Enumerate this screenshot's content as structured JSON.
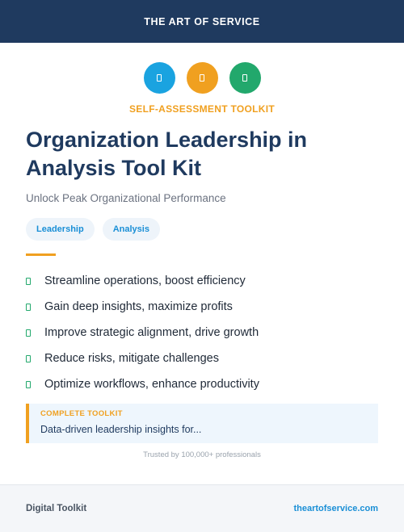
{
  "header": {
    "brand": "THE ART OF SERVICE"
  },
  "icons": [
    {
      "name": "book-icon",
      "color": "#1aa3e0"
    },
    {
      "name": "clipboard-icon",
      "color": "#f0a020"
    },
    {
      "name": "chart-icon",
      "color": "#22a86c"
    }
  ],
  "kicker": "SELF-ASSESSMENT TOOLKIT",
  "title": "Organization Leadership in Analysis Tool Kit",
  "subtitle": "Unlock Peak Organizational Performance",
  "tags": [
    "Leadership",
    "Analysis"
  ],
  "features": [
    "Streamline operations, boost efficiency",
    "Gain deep insights, maximize profits",
    "Improve strategic alignment, drive growth",
    "Reduce risks, mitigate challenges",
    "Optimize workflows, enhance productivity"
  ],
  "callout": {
    "label": "COMPLETE TOOLKIT",
    "text": "Data-driven leadership insights for..."
  },
  "trust": "Trusted by 100,000+ professionals",
  "footer": {
    "left": "Digital Toolkit",
    "right": "theartofservice.com"
  },
  "colors": {
    "navy": "#1f3a5f",
    "accent_orange": "#f0a020",
    "accent_blue": "#1aa3e0",
    "accent_green": "#22a86c"
  }
}
